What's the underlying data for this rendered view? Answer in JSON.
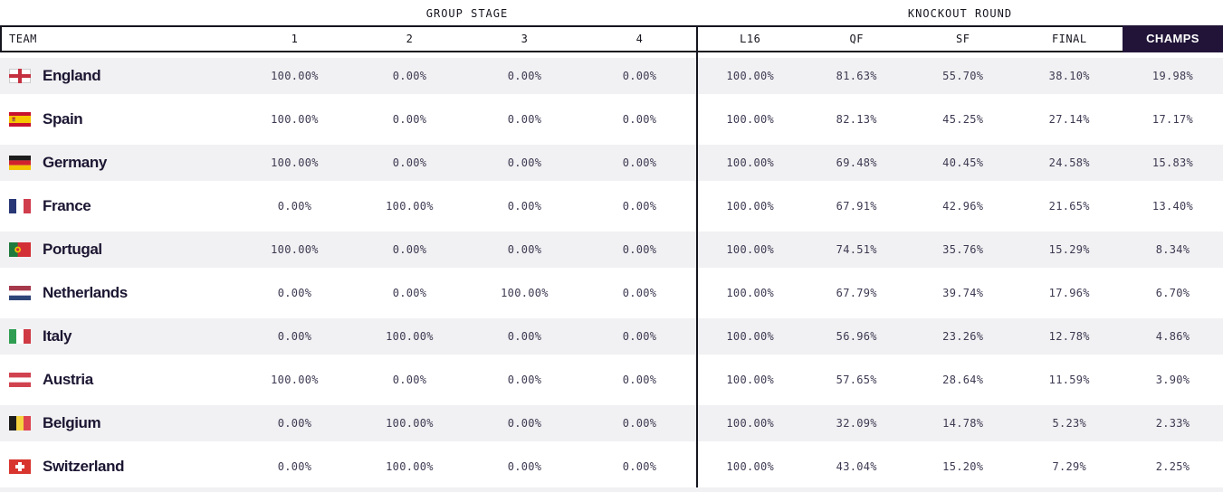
{
  "colors": {
    "champs_header_bg": "#211438",
    "row_stripe": "#f1f0f2",
    "border": "#15151f",
    "team_text": "#1c1632",
    "value_text": "#3e3a52"
  },
  "chart_data": {
    "type": "table",
    "column_groups": [
      {
        "label": "GROUP STAGE",
        "span": 4
      },
      {
        "label": "KNOCKOUT ROUND",
        "span": 5
      }
    ],
    "columns": [
      "TEAM",
      "1",
      "2",
      "3",
      "4",
      "L16",
      "QF",
      "SF",
      "FINAL",
      "CHAMPS"
    ],
    "highlighted_column": "CHAMPS",
    "rows": [
      {
        "team": "England",
        "flag": "england",
        "values": [
          "100.00%",
          "0.00%",
          "0.00%",
          "0.00%",
          "100.00%",
          "81.63%",
          "55.70%",
          "38.10%",
          "19.98%"
        ]
      },
      {
        "team": "Spain",
        "flag": "spain",
        "values": [
          "100.00%",
          "0.00%",
          "0.00%",
          "0.00%",
          "100.00%",
          "82.13%",
          "45.25%",
          "27.14%",
          "17.17%"
        ]
      },
      {
        "team": "Germany",
        "flag": "germany",
        "values": [
          "100.00%",
          "0.00%",
          "0.00%",
          "0.00%",
          "100.00%",
          "69.48%",
          "40.45%",
          "24.58%",
          "15.83%"
        ]
      },
      {
        "team": "France",
        "flag": "france",
        "values": [
          "0.00%",
          "100.00%",
          "0.00%",
          "0.00%",
          "100.00%",
          "67.91%",
          "42.96%",
          "21.65%",
          "13.40%"
        ]
      },
      {
        "team": "Portugal",
        "flag": "portugal",
        "values": [
          "100.00%",
          "0.00%",
          "0.00%",
          "0.00%",
          "100.00%",
          "74.51%",
          "35.76%",
          "15.29%",
          "8.34%"
        ]
      },
      {
        "team": "Netherlands",
        "flag": "netherlands",
        "values": [
          "0.00%",
          "0.00%",
          "100.00%",
          "0.00%",
          "100.00%",
          "67.79%",
          "39.74%",
          "17.96%",
          "6.70%"
        ]
      },
      {
        "team": "Italy",
        "flag": "italy",
        "values": [
          "0.00%",
          "100.00%",
          "0.00%",
          "0.00%",
          "100.00%",
          "56.96%",
          "23.26%",
          "12.78%",
          "4.86%"
        ]
      },
      {
        "team": "Austria",
        "flag": "austria",
        "values": [
          "100.00%",
          "0.00%",
          "0.00%",
          "0.00%",
          "100.00%",
          "57.65%",
          "28.64%",
          "11.59%",
          "3.90%"
        ]
      },
      {
        "team": "Belgium",
        "flag": "belgium",
        "values": [
          "0.00%",
          "100.00%",
          "0.00%",
          "0.00%",
          "100.00%",
          "32.09%",
          "14.78%",
          "5.23%",
          "2.33%"
        ]
      },
      {
        "team": "Switzerland",
        "flag": "switzerland",
        "values": [
          "0.00%",
          "100.00%",
          "0.00%",
          "0.00%",
          "100.00%",
          "43.04%",
          "15.20%",
          "7.29%",
          "2.25%"
        ]
      }
    ]
  }
}
